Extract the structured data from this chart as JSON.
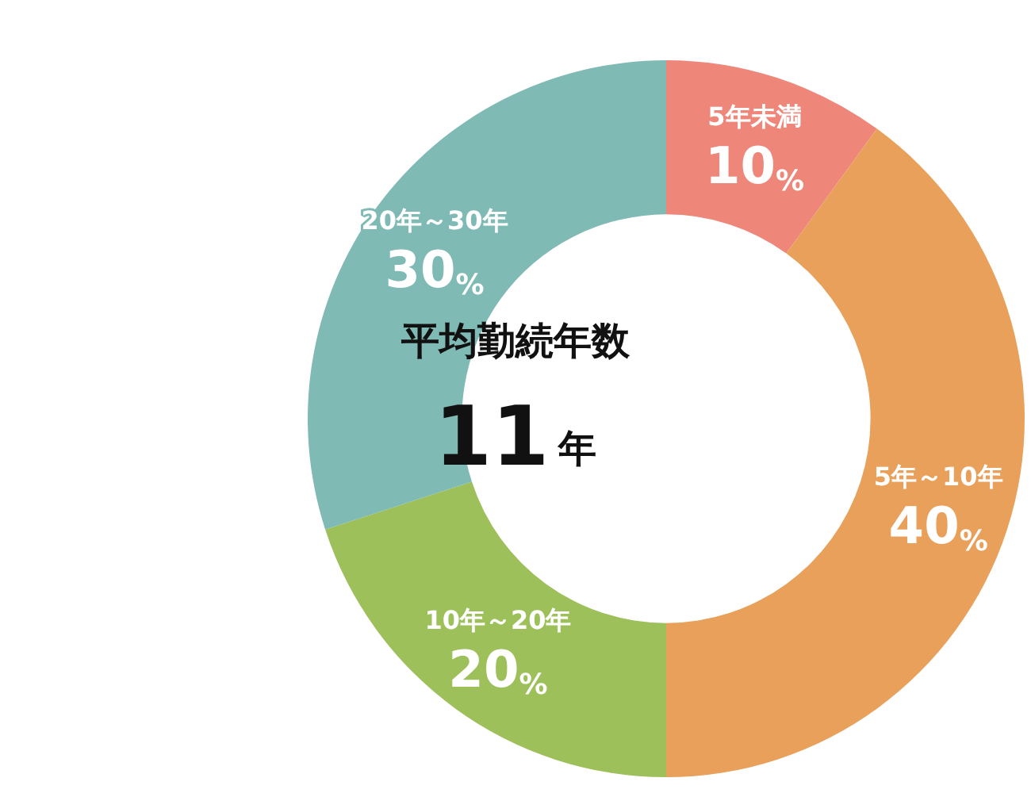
{
  "chart_data": {
    "type": "donut",
    "title": "平均勤続年数",
    "annotations": [
      "11年"
    ],
    "categories": [
      "5年未満",
      "5年～10年",
      "10年～20年",
      "20年～30年"
    ],
    "values": [
      10,
      40,
      20,
      30
    ],
    "colors": [
      "#ee867a",
      "#e8a05a",
      "#9dc05a",
      "#7fbab5"
    ],
    "value_labels": [
      "10%",
      "40%",
      "20%",
      "30%"
    ],
    "legend": false
  }
}
